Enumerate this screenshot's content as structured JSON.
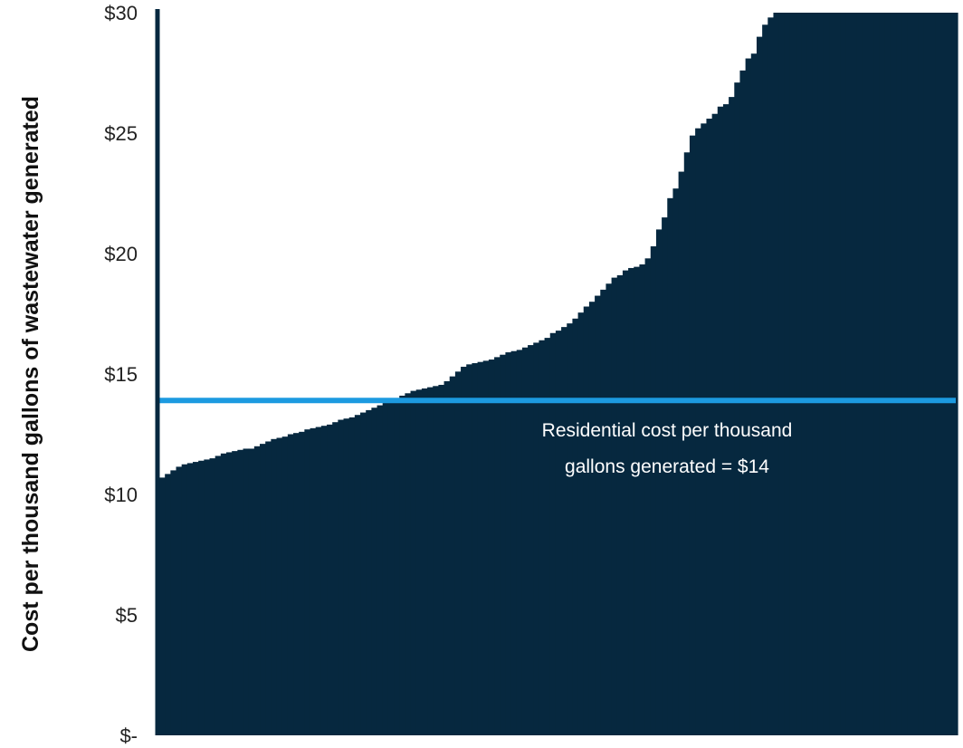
{
  "chart_data": {
    "type": "bar",
    "title": "",
    "xlabel": "",
    "ylabel": "Cost per thousand gallons of wastewater generated",
    "ylim": [
      0,
      30
    ],
    "y_ticks": [
      {
        "value": 0,
        "label": "$-"
      },
      {
        "value": 5,
        "label": "$5"
      },
      {
        "value": 10,
        "label": "$10"
      },
      {
        "value": 15,
        "label": "$15"
      },
      {
        "value": 20,
        "label": "$20"
      },
      {
        "value": 25,
        "label": "$25"
      },
      {
        "value": 30,
        "label": "$30"
      }
    ],
    "grid": false,
    "legend": "none",
    "bar_color": "#06283f",
    "reference_line": {
      "value": 13.9,
      "color": "#1c9ae0",
      "label_lines": [
        "Residential cost per thousand",
        "gallons generated = $14"
      ]
    },
    "values": [
      10.7,
      10.85,
      11.0,
      11.15,
      11.25,
      11.3,
      11.35,
      11.4,
      11.45,
      11.5,
      11.6,
      11.7,
      11.75,
      11.8,
      11.85,
      11.9,
      11.9,
      12.0,
      12.1,
      12.2,
      12.3,
      12.35,
      12.4,
      12.5,
      12.55,
      12.6,
      12.7,
      12.75,
      12.8,
      12.85,
      12.9,
      13.0,
      13.1,
      13.15,
      13.2,
      13.3,
      13.4,
      13.5,
      13.6,
      13.7,
      13.8,
      13.9,
      14.0,
      14.1,
      14.2,
      14.3,
      14.35,
      14.4,
      14.45,
      14.5,
      14.55,
      14.7,
      14.9,
      15.1,
      15.3,
      15.4,
      15.45,
      15.5,
      15.55,
      15.6,
      15.7,
      15.8,
      15.9,
      15.95,
      16.0,
      16.1,
      16.2,
      16.3,
      16.4,
      16.5,
      16.7,
      16.8,
      16.95,
      17.1,
      17.3,
      17.55,
      17.8,
      18.0,
      18.25,
      18.5,
      18.75,
      19.0,
      19.1,
      19.3,
      19.4,
      19.45,
      19.55,
      19.8,
      20.3,
      21.0,
      21.5,
      22.3,
      22.7,
      23.4,
      24.2,
      24.9,
      25.2,
      25.4,
      25.6,
      25.8,
      26.1,
      26.2,
      26.5,
      27.1,
      27.6,
      28.1,
      28.3,
      29.0,
      29.5,
      29.8,
      30,
      30,
      30,
      30,
      30,
      30,
      30,
      30,
      30,
      30,
      30,
      30,
      30,
      30,
      30,
      30,
      30,
      30,
      30,
      30,
      30,
      30,
      30,
      30,
      30,
      30,
      30,
      30,
      30,
      30,
      30,
      30,
      30
    ]
  }
}
